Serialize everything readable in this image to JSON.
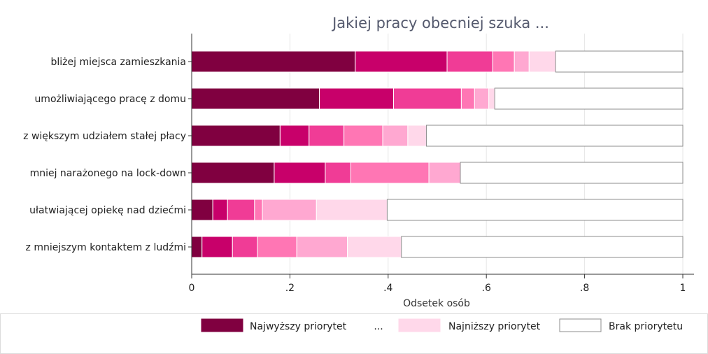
{
  "chart_data": {
    "type": "bar",
    "orientation": "horizontal",
    "stacked": true,
    "title": "Jakiej pracy obecniej szuka ...",
    "xlabel": "Odsetek osób",
    "ylabel": "",
    "xlim": [
      0,
      1
    ],
    "xticks": [
      0,
      0.2,
      0.4,
      0.6,
      0.8,
      1
    ],
    "xtick_labels": [
      "0",
      ".2",
      ".4",
      ".6",
      ".8",
      "1"
    ],
    "grid": true,
    "categories": [
      "bliżej miejsca zamieszkania",
      "umożliwiającego pracę z domu",
      "z większym udziałem stałej płacy",
      "mniej narażonego na lock-down",
      "ułatwiającej opiekę nad dziećmi",
      "z mniejszym kontaktem z ludźmi"
    ],
    "series": [
      {
        "values": [
          0.333,
          0.26,
          0.18,
          0.168,
          0.043,
          0.021
        ],
        "color": "#800040"
      },
      {
        "values": [
          0.187,
          0.151,
          0.059,
          0.104,
          0.03,
          0.062
        ],
        "color": "#c8006a"
      },
      {
        "values": [
          0.093,
          0.138,
          0.071,
          0.052,
          0.055,
          0.051
        ],
        "color": "#f03c96"
      },
      {
        "values": [
          0.044,
          0.027,
          0.079,
          0.159,
          0.016,
          0.08
        ],
        "color": "#ff76b4"
      },
      {
        "values": [
          0.03,
          0.029,
          0.051,
          0.064,
          0.11,
          0.103
        ],
        "color": "#ffa8d1"
      },
      {
        "values": [
          0.054,
          0.012,
          0.038,
          0.0,
          0.144,
          0.11
        ],
        "color": "#ffd8ea"
      },
      {
        "values": [
          0.259,
          0.383,
          0.522,
          0.453,
          0.602,
          0.573
        ],
        "color": "#ffffff"
      }
    ],
    "legend": {
      "placement": "bottom",
      "items": [
        {
          "label": "Najwyższy priorytet",
          "color": "#800040"
        },
        {
          "label": "...",
          "color": null
        },
        {
          "label": "Najniższy priorytet",
          "color": "#ffd8ea"
        },
        {
          "label": "Brak priorytetu",
          "color": "#ffffff"
        }
      ]
    }
  }
}
